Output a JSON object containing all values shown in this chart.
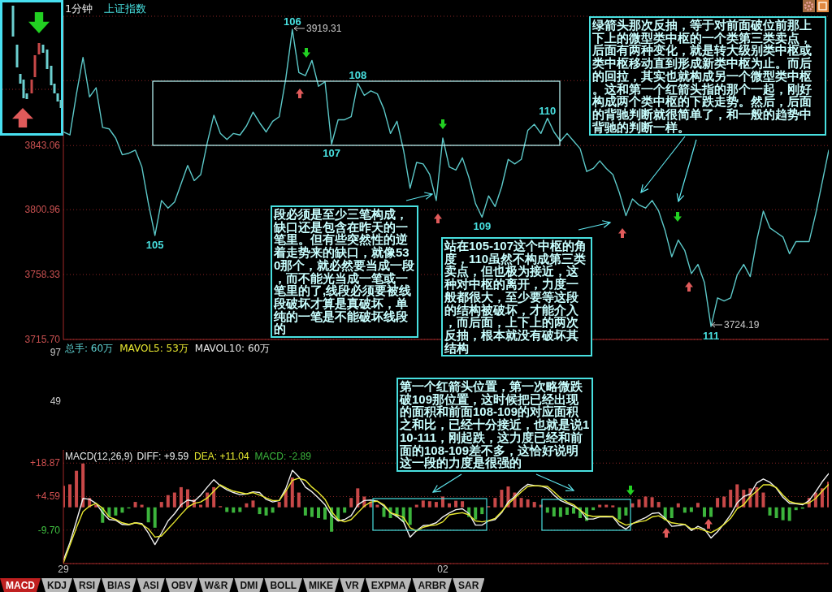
{
  "chart_data": [
    {
      "type": "line",
      "title": "1分钟",
      "subtitle": "上证指数",
      "categories": [
        "29",
        null,
        null,
        null,
        null,
        null,
        null,
        null,
        null,
        null,
        null,
        null,
        null,
        null,
        null,
        null,
        null,
        null,
        null,
        null,
        null,
        null,
        null,
        null,
        null,
        null,
        null,
        null,
        null,
        null,
        null,
        null,
        null,
        null,
        null,
        null,
        null,
        null,
        null,
        null,
        null,
        null,
        null,
        null,
        null,
        null,
        null,
        null,
        null,
        null,
        null,
        null,
        null,
        null,
        null,
        null,
        null,
        null,
        "02",
        null,
        null,
        null,
        null,
        null,
        null,
        null,
        null,
        null,
        null,
        null,
        null,
        null,
        null,
        null,
        null,
        null,
        null,
        null,
        null,
        null,
        null,
        null,
        null,
        null,
        null,
        null,
        null,
        null,
        null,
        null,
        null,
        null,
        null,
        null,
        null,
        null,
        null,
        null,
        null,
        null,
        null,
        null,
        null,
        null,
        null,
        null,
        null,
        null,
        null,
        null,
        null,
        null,
        null,
        null,
        null,
        null,
        null,
        null
      ],
      "values": [
        3852,
        3850,
        3877,
        3901,
        3875,
        3881,
        3855,
        3854,
        3848,
        3837,
        3838,
        3840,
        3829,
        3805,
        3784,
        3807,
        3802,
        3806,
        3818,
        3830,
        3820,
        3824,
        3845,
        3863,
        3851,
        3847,
        3851,
        3850,
        3856,
        3865,
        3858,
        3852,
        3859,
        3862,
        3887,
        3919.31,
        3891,
        3889,
        3899,
        3882,
        3885,
        3844,
        3860,
        3860,
        3862,
        3884,
        3876,
        3879,
        3877,
        3867,
        3851,
        3859,
        3840,
        3815,
        3832,
        3831,
        3824,
        3807,
        3848,
        3829,
        3827,
        3835,
        3822,
        3805,
        3796,
        3810,
        3803,
        3816,
        3834,
        3831,
        3834,
        3853,
        3857,
        3851,
        3861,
        3852,
        3846,
        3851,
        3846,
        3841,
        3826,
        3828,
        3833,
        3828,
        3824,
        3812,
        3797,
        3808,
        3804,
        3802,
        3807,
        3800,
        3787,
        3770,
        3781,
        3774,
        3759,
        3765,
        3753,
        3724.19,
        3743,
        3741,
        3743,
        3758,
        3765,
        3757,
        3781,
        3800,
        3789,
        3786,
        3783,
        3772,
        3780,
        3780,
        3780,
        3798,
        3819,
        3840
      ],
      "color": "#5cc8c8",
      "ylim": [
        3715.7,
        3928
      ],
      "yticks": [
        {
          "value": 3715.7,
          "label": "3715.70"
        },
        3758.33,
        3800.96,
        3843.06,
        {
          "value": 3885.7,
          "label": null
        },
        {
          "value": 3928,
          "label": null
        }
      ],
      "grid": "y",
      "tick_labels": "y",
      "annotations": [
        "段必须是至少三笔构成，缺口还是包含在昨天的一笔里。但有些突然性的逆着走势来的缺口，就像530那个，就必然要当成一段，而不能光当成一笔或一笔里的了,线段必须要被线段破坏才算是真破坏，单纯的一笔是不能破坏线段的",
        "站在105-107这个中枢的角度，110虽然不构成第三类卖点，但也极为接近，这种对中枢的离开，力度一般都很大，至少要等这段的结构被破坏，才能介入，而后面，上下上的两次反抽，根本就没有破坏其结构",
        "绿箭头那次反抽，等于对前面破位前那上下上的微型类中枢的一个类第三类卖点，后面有两种变化，就是转大级别类中枢或类中枢移动直到形成新类中枢为止。而后的回拉，其实也就构成另一个微型类中枢。这和第一个红箭头指的那个一起，刚好构成两个类中枢的下跌走势。然后，后面的背驰判断就很简单了，和一般的趋势中背驰的判断一样。",
        "3919.31",
        "3724.19",
        {
          "text": "105",
          "y": 3784
        },
        {
          "text": "106",
          "y": 3919.31
        },
        {
          "text": "107",
          "y": 3844
        },
        {
          "text": "108",
          "y": 3884
        },
        {
          "text": "109",
          "y": 3796
        },
        {
          "text": "110",
          "y": 3861
        },
        {
          "text": "111",
          "y": 3724.19
        }
      ]
    },
    {
      "type": "other",
      "annotations": [
        "总手: 60万",
        "MAVOL5: 53万",
        "MAVOL10: 60万",
        "97",
        "49"
      ]
    },
    {
      "type": "line",
      "title": "MACD(12,26,9)",
      "categories": [
        "29",
        null,
        null,
        null,
        null,
        null,
        null,
        null,
        null,
        null,
        null,
        null,
        null,
        null,
        null,
        null,
        null,
        null,
        null,
        null,
        null,
        null,
        null,
        null,
        null,
        null,
        null,
        null,
        null,
        null,
        null,
        null,
        null,
        null,
        null,
        null,
        null,
        null,
        null,
        null,
        null,
        null,
        null,
        null,
        null,
        null,
        null,
        null,
        null,
        null,
        null,
        null,
        null,
        null,
        null,
        null,
        null,
        null,
        "02",
        null,
        null,
        null,
        null,
        null,
        null,
        null,
        null,
        null,
        null,
        null,
        null,
        null,
        null,
        null,
        null,
        null,
        null,
        null,
        null,
        null,
        null,
        null,
        null,
        null,
        null,
        null,
        null,
        null,
        null,
        null,
        null,
        null,
        null,
        null,
        null,
        null,
        null,
        null,
        null,
        null,
        null,
        null,
        null,
        null,
        null,
        null,
        null,
        null,
        null,
        null,
        null,
        null,
        null,
        null,
        null,
        null,
        null,
        null
      ],
      "series": [
        {
          "name": "DIFF: +9.59",
          "color": "#f0f0f0",
          "values": [
            -22.6,
            -15.1,
            -5.8,
            3.8,
            3.4,
            1.7,
            -2.3,
            -5.2,
            -5.5,
            -7.3,
            -7.5,
            -6.6,
            -6.9,
            -11.0,
            -15.9,
            -11.0,
            -5.8,
            -2.7,
            1.1,
            3.1,
            2.6,
            5.2,
            8.6,
            11.8,
            9.2,
            7.5,
            6.3,
            5.4,
            5.7,
            6.6,
            6.3,
            3.4,
            2.3,
            2.9,
            8.0,
            15.8,
            13.0,
            8.6,
            6.6,
            4.0,
            1.1,
            -3.5,
            -5.8,
            -5.2,
            -3.5,
            1.1,
            2.9,
            3.1,
            2.6,
            0.5,
            -2.3,
            -3.9,
            -6.2,
            -12.7,
            -9.9,
            -7.8,
            -7.5,
            -6.6,
            -4.1,
            -2.4,
            -1.0,
            -0.6,
            -2.7,
            -7.6,
            -7.6,
            -5.8,
            -5.2,
            -2.3,
            2.3,
            4.6,
            7.7,
            9.8,
            9.3,
            9.1,
            8.1,
            5.2,
            2.9,
            1.7,
            0.5,
            -1.2,
            -5.0,
            -5.0,
            -4.1,
            -4.1,
            -4.1,
            -7.6,
            -9.3,
            -7.0,
            -5.6,
            -4.4,
            -2.6,
            -2.3,
            -4.7,
            -8.1,
            -7.8,
            -7.3,
            -9.9,
            -8.1,
            -9.3,
            -13.1,
            -10.4,
            -7.0,
            -3.2,
            1.9,
            4.6,
            5.7,
            10.4,
            12.1,
            10.7,
            8.1,
            4.2,
            1.7,
            1.5,
            1.1,
            2.9,
            6.6,
            10.9,
            14.4
          ]
        },
        {
          "name": "DEA: +11.04",
          "color": "#e8e830",
          "values": [
            -23.7,
            -16.2,
            -8.7,
            -1.8,
            0.5,
            1.7,
            -0.4,
            -4.1,
            -5.2,
            -6.6,
            -7.3,
            -6.6,
            -7.3,
            -9.2,
            -12.7,
            -12.2,
            -9.2,
            -6.2,
            -3.0,
            0.0,
            1.7,
            2.3,
            4.0,
            6.9,
            9.6,
            8.1,
            6.9,
            6.3,
            5.7,
            6.3,
            5.2,
            4.0,
            2.9,
            2.9,
            6.9,
            11.5,
            12.4,
            11.5,
            8.6,
            6.3,
            3.4,
            -1.8,
            -5.2,
            -6.2,
            -5.2,
            -2.3,
            0.5,
            2.3,
            2.6,
            1.1,
            -2.3,
            -3.2,
            -4.3,
            -8.7,
            -10.1,
            -8.5,
            -7.8,
            -7.5,
            -6.2,
            -3.2,
            -2.7,
            -2.3,
            -3.2,
            -5.8,
            -6.2,
            -5.7,
            -4.7,
            -1.8,
            1.4,
            4.0,
            6.6,
            8.9,
            9.2,
            9.1,
            8.9,
            6.6,
            4.0,
            2.3,
            1.1,
            -1.2,
            -3.3,
            -3.9,
            -3.8,
            -3.8,
            -3.9,
            -6.2,
            -7.6,
            -6.9,
            -6.2,
            -5.7,
            -4.1,
            -3.6,
            -5.2,
            -6.6,
            -7.0,
            -7.3,
            -9.2,
            -8.9,
            -9.9,
            -10.8,
            -9.3,
            -7.3,
            -4.7,
            -0.6,
            1.1,
            4.6,
            6.9,
            9.6,
            9.6,
            8.4,
            5.2,
            2.5,
            1.7,
            1.5,
            1.9,
            3.8,
            6.9,
            9.8
          ]
        },
        {
          "type": "bar",
          "name": "MACD: -2.89",
          "color": "#3cb43c",
          "values": [
            9.2,
            9.8,
            15.6,
            18.7,
            4.0,
            1.1,
            -6.6,
            -4.1,
            -3.5,
            -2.3,
            -0.5,
            2.3,
            1.1,
            -6.4,
            -8.7,
            2.3,
            5.2,
            6.3,
            8.6,
            7.7,
            3.4,
            1.1,
            6.3,
            8.6,
            0.5,
            -2.0,
            -2.3,
            -2.0,
            1.7,
            2.9,
            -2.9,
            -3.5,
            -2.3,
            2.3,
            7.5,
            12.7,
            6.3,
            -3.5,
            -4.1,
            -4.6,
            -5.2,
            -10.4,
            -5.8,
            -2.3,
            4.0,
            8.1,
            4.6,
            2.3,
            1.1,
            -4.1,
            -4.6,
            -4.1,
            -6.2,
            -7.5,
            1.1,
            2.9,
            2.6,
            2.3,
            4.6,
            1.7,
            2.8,
            2.6,
            -4.1,
            -5.2,
            -2.9,
            0.5,
            4.0,
            7.5,
            8.9,
            6.3,
            4.0,
            3.4,
            2.3,
            1.1,
            -2.3,
            -3.9,
            -4.1,
            -3.2,
            -2.7,
            -4.6,
            -5.8,
            -1.2,
            1.1,
            1.1,
            0.8,
            -5.2,
            -3.5,
            1.7,
            3.4,
            4.6,
            4.3,
            2.3,
            -5.5,
            -4.6,
            1.7,
            -2.3,
            -2.0,
            1.9,
            -4.1,
            -4.1,
            4.0,
            4.6,
            7.5,
            9.8,
            7.5,
            8.1,
            8.6,
            6.3,
            -3.5,
            -4.6,
            -5.5,
            -5.8,
            -1.2,
            -0.6,
            4.0,
            6.3,
            8.1,
            10.9
          ],
          "colors": [
            "#c84848",
            "#c84848",
            "#c84848",
            "#c84848",
            "#c84848",
            "#c84848",
            "#3cb43c",
            "#3cb43c",
            "#3cb43c",
            "#3cb43c",
            "#3cb43c",
            "#c84848",
            "#c84848",
            "#3cb43c",
            "#3cb43c",
            "#c84848",
            "#c84848",
            "#c84848",
            "#c84848",
            "#c84848",
            "#c84848",
            "#c84848",
            "#c84848",
            "#c84848",
            "#c84848",
            "#3cb43c",
            "#3cb43c",
            "#3cb43c",
            "#c84848",
            "#c84848",
            "#3cb43c",
            "#3cb43c",
            "#3cb43c",
            "#c84848",
            "#c84848",
            "#c84848",
            "#c84848",
            "#3cb43c",
            "#3cb43c",
            "#3cb43c",
            "#3cb43c",
            "#3cb43c",
            "#3cb43c",
            "#3cb43c",
            "#c84848",
            "#c84848",
            "#c84848",
            "#c84848",
            "#c84848",
            "#3cb43c",
            "#3cb43c",
            "#3cb43c",
            "#3cb43c",
            "#3cb43c",
            "#c84848",
            "#c84848",
            "#c84848",
            "#c84848",
            "#c84848",
            "#c84848",
            "#c84848",
            "#c84848",
            "#3cb43c",
            "#3cb43c",
            "#3cb43c",
            "#c84848",
            "#c84848",
            "#c84848",
            "#c84848",
            "#c84848",
            "#c84848",
            "#c84848",
            "#c84848",
            "#c84848",
            "#3cb43c",
            "#3cb43c",
            "#3cb43c",
            "#3cb43c",
            "#3cb43c",
            "#3cb43c",
            "#3cb43c",
            "#3cb43c",
            "#c84848",
            "#c84848",
            "#c84848",
            "#3cb43c",
            "#3cb43c",
            "#c84848",
            "#c84848",
            "#c84848",
            "#c84848",
            "#c84848",
            "#3cb43c",
            "#3cb43c",
            "#c84848",
            "#3cb43c",
            "#3cb43c",
            "#c84848",
            "#3cb43c",
            "#3cb43c",
            "#c84848",
            "#c84848",
            "#c84848",
            "#c84848",
            "#c84848",
            "#c84848",
            "#c84848",
            "#c84848",
            "#3cb43c",
            "#3cb43c",
            "#3cb43c",
            "#3cb43c",
            "#3cb43c",
            "#3cb43c",
            "#c84848",
            "#c84848",
            "#c84848",
            "#c84848"
          ]
        }
      ],
      "ylim": [
        -24.0,
        24.5
      ],
      "yticks": [
        {
          "value": 18.87,
          "label": "+18.87"
        },
        {
          "value": 4.59,
          "label": "+4.59"
        },
        {
          "value": -9.7,
          "label": "-9.70"
        }
      ],
      "grid": "y",
      "legend": "top left",
      "annotations": [
        "第一个红箭头位置，第一次略微跌破109那位置，这时候把已经出现的面积和前面108-109的对应面积之和比，已经十分接近，也就是说110-111，刚起跌，这力度已经和前面的108-109差不多，这恰好说明这一段的力度是很强的",
        "MACD",
        "KDJ",
        "RSI",
        "BIAS",
        "ASI",
        "OBV",
        "W&R",
        "DMI",
        "BOLL",
        "MIKE",
        "VR",
        "EXPMA",
        "ARBR",
        "SAR"
      ]
    }
  ]
}
